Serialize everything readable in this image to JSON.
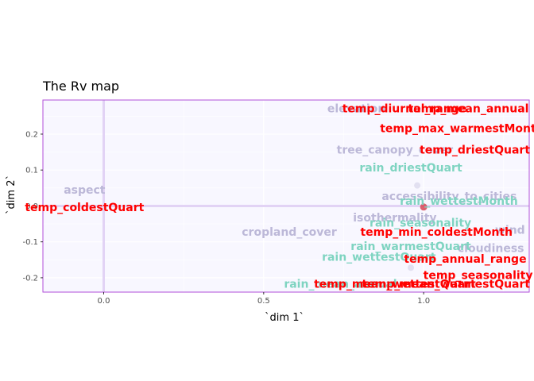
{
  "chart_data": {
    "type": "scatter",
    "title": "The Rv map",
    "xlabel": "`dim 1`",
    "ylabel": "`dim 2`",
    "xlim": [
      -0.19,
      1.33
    ],
    "ylim": [
      -0.24,
      0.295
    ],
    "x_ticks": [
      0.0,
      0.5,
      1.0
    ],
    "x_tick_labels": [
      "0.0",
      "0.5",
      "1.0"
    ],
    "y_ticks": [
      -0.2,
      -0.1,
      0.0,
      0.1,
      0.2
    ],
    "y_tick_labels": [
      "-0.2",
      "-0.1",
      "0.0",
      "0.1",
      "0.2"
    ],
    "grid": true,
    "colors": {
      "panel_bg": "#f8f7ff",
      "panel_border": "#b04fd8",
      "grid": "#ffffff",
      "zero_line": "#e2d3f5",
      "point": "#dcd9ee",
      "point_highlight": "#d9505f",
      "label_red": "#ff0000",
      "label_teal": "#7fd4c1",
      "label_purple": "#bcb8d8"
    },
    "points": [
      {
        "label": "aspect",
        "x": -0.06,
        "y": 0.045,
        "color": "purple"
      },
      {
        "label": "temp_coldestQuart",
        "x": -0.06,
        "y": -0.003,
        "color": "red"
      },
      {
        "label": "cropland_cover",
        "x": 0.58,
        "y": -0.072,
        "color": "purple"
      },
      {
        "label": "elevation",
        "x": 0.79,
        "y": 0.272,
        "color": "purple"
      },
      {
        "label": "temp_diurnal_range",
        "x": 0.94,
        "y": 0.272,
        "color": "red"
      },
      {
        "label": "temp_mean_annual",
        "x": 1.14,
        "y": 0.272,
        "color": "red"
      },
      {
        "label": "temp_max_warmestMonth",
        "x": 1.12,
        "y": 0.217,
        "color": "red"
      },
      {
        "label": "tree_canopy_cover",
        "x": 0.91,
        "y": 0.157,
        "color": "purple"
      },
      {
        "label": "temp_driestQuart",
        "x": 1.16,
        "y": 0.157,
        "color": "red"
      },
      {
        "label": "rain_driestQuart",
        "x": 0.96,
        "y": 0.107,
        "color": "teal"
      },
      {
        "label": "accessibility_to_cities",
        "x": 1.08,
        "y": 0.028,
        "color": "purple"
      },
      {
        "label": "rain_wettestMonth",
        "x": 1.11,
        "y": 0.014,
        "color": "teal"
      },
      {
        "label": "isothermality",
        "x": 0.91,
        "y": -0.032,
        "color": "purple"
      },
      {
        "label": "rain_seasonality",
        "x": 0.99,
        "y": -0.047,
        "color": "teal"
      },
      {
        "label": "temp_min_coldestMonth",
        "x": 1.04,
        "y": -0.072,
        "color": "red"
      },
      {
        "label": "wind",
        "x": 1.27,
        "y": -0.067,
        "color": "purple"
      },
      {
        "label": "rain_warmestQuart",
        "x": 0.96,
        "y": -0.112,
        "color": "teal"
      },
      {
        "label": "cloudiness",
        "x": 1.21,
        "y": -0.117,
        "color": "purple"
      },
      {
        "label": "rain_wettestQuart",
        "x": 0.86,
        "y": -0.142,
        "color": "teal"
      },
      {
        "label": "temp_annual_range",
        "x": 1.13,
        "y": -0.147,
        "color": "red"
      },
      {
        "label": "temp_seasonality",
        "x": 1.17,
        "y": -0.192,
        "color": "red"
      },
      {
        "label": "rain_mean_annual",
        "x": 0.74,
        "y": -0.217,
        "color": "teal"
      },
      {
        "label": "temp_mean_wettestQuart",
        "x": 0.91,
        "y": -0.217,
        "color": "red"
      },
      {
        "label": "temp_mean_warmestQuart",
        "x": 1.07,
        "y": -0.217,
        "color": "red"
      }
    ],
    "markers": [
      {
        "x": 0.98,
        "y": 0.057,
        "color": "point"
      },
      {
        "x": 1.0,
        "y": -0.003,
        "color": "point_highlight"
      },
      {
        "x": 0.96,
        "y": -0.172,
        "color": "point"
      }
    ]
  }
}
